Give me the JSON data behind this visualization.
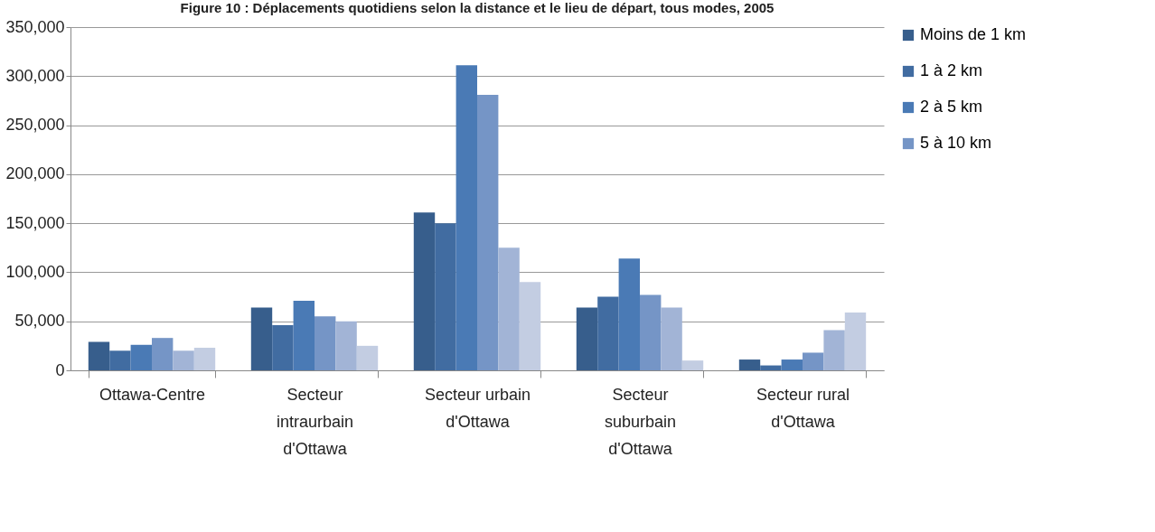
{
  "chart_data": {
    "type": "bar",
    "title": "Figure 10 : Déplacements quotidiens selon la distance et le lieu de départ, tous modes, 2005",
    "categories": [
      "Ottawa-Centre",
      "Secteur intraurbain d'Ottawa",
      "Secteur urbain d'Ottawa",
      "Secteur suburbain d'Ottawa",
      "Secteur rural d'Ottawa"
    ],
    "series": [
      {
        "name": "Moins de 1 km",
        "color": "#375e8c",
        "values": [
          29000,
          64000,
          161000,
          64000,
          11000
        ]
      },
      {
        "name": "1 à 2 km",
        "color": "#416ca1",
        "values": [
          20000,
          46000,
          150000,
          75000,
          5000
        ]
      },
      {
        "name": "2 à 5 km",
        "color": "#4a7ab5",
        "values": [
          26000,
          71000,
          311000,
          114000,
          11000
        ]
      },
      {
        "name": "5 à 10 km",
        "color": "#7595c6",
        "values": [
          33000,
          55000,
          281000,
          77000,
          18000
        ]
      },
      {
        "color": "#a2b4d6",
        "values": [
          20000,
          50000,
          125000,
          64000,
          41000
        ]
      },
      {
        "color": "#c3cde2",
        "values": [
          23000,
          25000,
          90000,
          10000,
          59000
        ]
      }
    ],
    "ylim": [
      0,
      350000
    ],
    "yticks": [
      0,
      {
        "value": 50000,
        "label": "50,000"
      },
      {
        "value": 100000,
        "label": "100,000"
      },
      {
        "value": 150000,
        "label": "150,000"
      },
      {
        "value": 200000,
        "label": "200,000"
      },
      {
        "value": 250000,
        "label": "250,000"
      },
      {
        "value": 300000,
        "label": "300,000"
      },
      {
        "value": 350000,
        "label": "350,000"
      }
    ],
    "grid": "y",
    "legend": "right"
  }
}
